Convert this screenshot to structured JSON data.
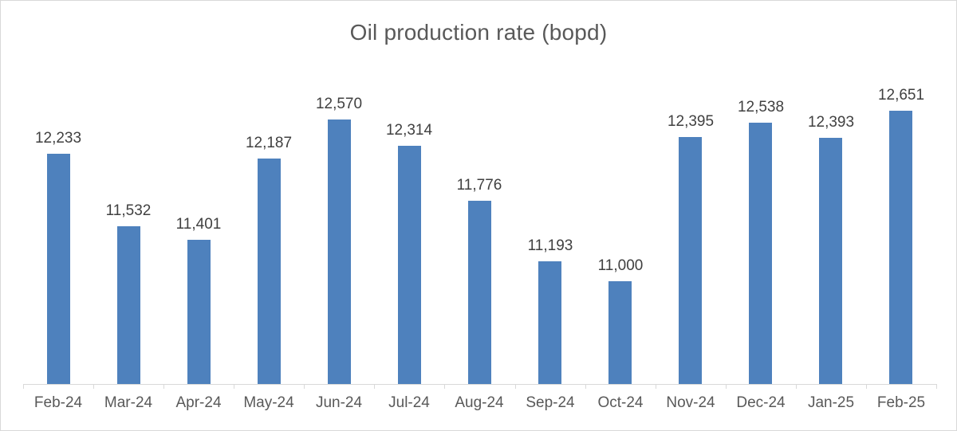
{
  "chart_data": {
    "type": "bar",
    "title": "Oil production rate (bopd)",
    "categories": [
      "Feb-24",
      "Mar-24",
      "Apr-24",
      "May-24",
      "Jun-24",
      "Jul-24",
      "Aug-24",
      "Sep-24",
      "Oct-24",
      "Nov-24",
      "Dec-24",
      "Jan-25",
      "Feb-25"
    ],
    "values": [
      12233,
      11532,
      11401,
      12187,
      12570,
      12314,
      11776,
      11193,
      11000,
      12395,
      12538,
      12393,
      12651
    ],
    "data_labels": [
      "12,233",
      "11,532",
      "11,401",
      "12,187",
      "12,570",
      "12,314",
      "11,776",
      "11,193",
      "11,000",
      "12,395",
      "12,538",
      "12,393",
      "12,651"
    ],
    "xlabel": "",
    "ylabel": "",
    "ylim": [
      10000,
      13000
    ],
    "grid": false,
    "legend": false,
    "y_axis_visible": false,
    "data_labels_position": "above-bar",
    "colors": {
      "bar_fill": "#4e81bd",
      "title_text": "#595959",
      "data_label_text": "#404040",
      "axis_label_text": "#595959",
      "axis_line": "#d9d9d9",
      "chart_border": "#d9d9d9"
    }
  }
}
